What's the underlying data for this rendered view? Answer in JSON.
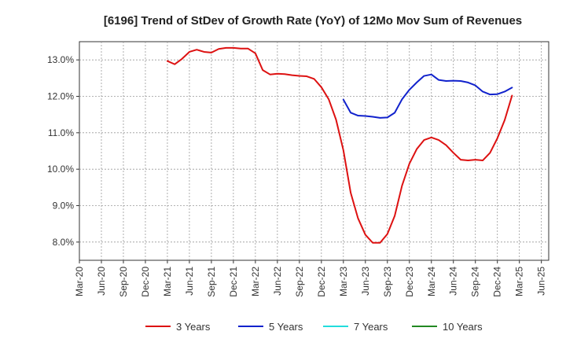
{
  "chart_data": {
    "type": "line",
    "title": "[6196]  Trend of StDev of Growth Rate (YoY) of 12Mo Mov Sum of Revenues",
    "xlabel": "",
    "ylabel": "",
    "ylim": [
      7.5,
      13.5
    ],
    "y_ticks": [
      8.0,
      9.0,
      10.0,
      11.0,
      12.0,
      13.0
    ],
    "y_tick_labels": [
      "8.0%",
      "9.0%",
      "10.0%",
      "11.0%",
      "12.0%",
      "13.0%"
    ],
    "x_tick_labels": [
      "Mar-20",
      "Jun-20",
      "Sep-20",
      "Dec-20",
      "Mar-21",
      "Jun-21",
      "Sep-21",
      "Dec-21",
      "Mar-22",
      "Jun-22",
      "Sep-22",
      "Dec-22",
      "Mar-23",
      "Jun-23",
      "Sep-23",
      "Dec-23",
      "Mar-24",
      "Jun-24",
      "Sep-24",
      "Dec-24",
      "Mar-25",
      "Jun-25"
    ],
    "x_start": "Mar-20",
    "months_count": 64,
    "grid": true,
    "legend_position": "bottom",
    "series": [
      {
        "name": "3 Years",
        "color": "#dd1111",
        "start_month_index": 12,
        "values": [
          12.97,
          12.88,
          13.03,
          13.22,
          13.28,
          13.22,
          13.2,
          13.3,
          13.33,
          13.33,
          13.31,
          13.31,
          13.18,
          12.72,
          12.6,
          12.62,
          12.61,
          12.58,
          12.56,
          12.55,
          12.48,
          12.25,
          11.92,
          11.36,
          10.52,
          9.35,
          8.65,
          8.2,
          7.98,
          7.98,
          8.22,
          8.72,
          9.55,
          10.15,
          10.55,
          10.8,
          10.87,
          10.8,
          10.66,
          10.45,
          10.26,
          10.24,
          10.26,
          10.24,
          10.45,
          10.85,
          11.35,
          12.02
        ]
      },
      {
        "name": "5 Years",
        "color": "#1122cc",
        "start_month_index": 36,
        "values": [
          11.91,
          11.55,
          11.47,
          11.46,
          11.44,
          11.41,
          11.42,
          11.55,
          11.92,
          12.18,
          12.38,
          12.56,
          12.6,
          12.45,
          12.42,
          12.43,
          12.42,
          12.38,
          12.3,
          12.13,
          12.05,
          12.06,
          12.13,
          12.24
        ]
      },
      {
        "name": "7 Years",
        "color": "#22dddd",
        "start_month_index": null,
        "values": []
      },
      {
        "name": "10 Years",
        "color": "#228822",
        "start_month_index": null,
        "values": []
      }
    ]
  }
}
